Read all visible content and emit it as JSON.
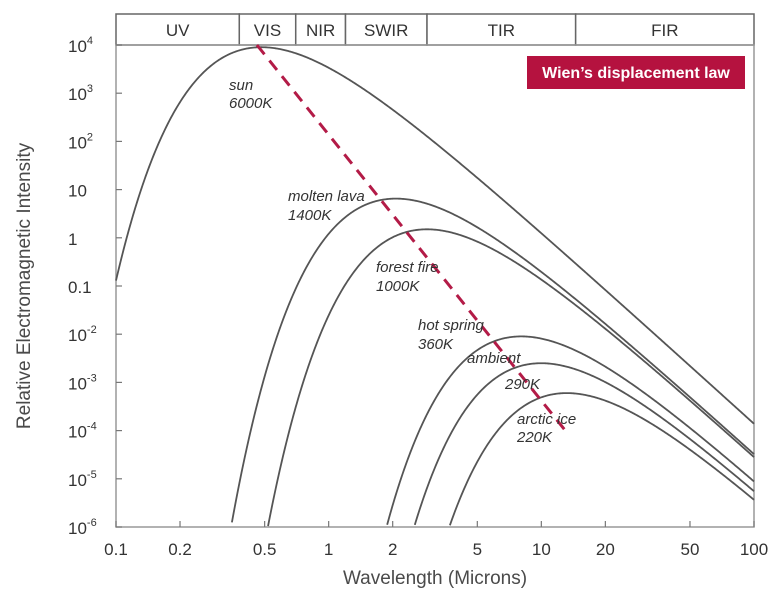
{
  "chart_data": {
    "type": "line",
    "title": "",
    "xlabel": "Wavelength (Microns)",
    "ylabel": "Relative Electromagnetic Intensity",
    "xscale": "log",
    "yscale": "log",
    "xlim": [
      0.1,
      100
    ],
    "ylim": [
      1e-06,
      10000
    ],
    "grid": false,
    "x_ticks": [
      {
        "value": 0.1,
        "label": "0.1"
      },
      {
        "value": 0.2,
        "label": "0.2"
      },
      {
        "value": 0.5,
        "label": "0.5"
      },
      {
        "value": 1,
        "label": "1"
      },
      {
        "value": 2,
        "label": "2"
      },
      {
        "value": 5,
        "label": "5"
      },
      {
        "value": 10,
        "label": "10"
      },
      {
        "value": 20,
        "label": "20"
      },
      {
        "value": 50,
        "label": "50"
      },
      {
        "value": 100,
        "label": "100"
      }
    ],
    "y_ticks": [
      {
        "value": 10000,
        "base": "10",
        "exp": "4"
      },
      {
        "value": 1000,
        "base": "10",
        "exp": "3"
      },
      {
        "value": 100,
        "base": "10",
        "exp": "2"
      },
      {
        "value": 10,
        "base": "10",
        "exp": ""
      },
      {
        "value": 1,
        "base": "1",
        "exp": ""
      },
      {
        "value": 0.1,
        "base": "0.1",
        "exp": ""
      },
      {
        "value": 0.01,
        "base": "10",
        "exp": "-2"
      },
      {
        "value": 0.001,
        "base": "10",
        "exp": "-3"
      },
      {
        "value": 0.0001,
        "base": "10",
        "exp": "-4"
      },
      {
        "value": 1e-05,
        "base": "10",
        "exp": "-5"
      },
      {
        "value": 1e-06,
        "base": "10",
        "exp": "-6"
      }
    ],
    "bands": [
      {
        "label": "UV",
        "from": 0.1,
        "to": 0.38
      },
      {
        "label": "VIS",
        "from": 0.38,
        "to": 0.7
      },
      {
        "label": "NIR",
        "from": 0.7,
        "to": 1.2
      },
      {
        "label": "SWIR",
        "from": 1.2,
        "to": 2.9
      },
      {
        "label": "TIR",
        "from": 2.9,
        "to": 14.5
      },
      {
        "label": "FIR",
        "from": 14.5,
        "to": 100
      }
    ],
    "series": [
      {
        "label_lines": [
          "sun",
          "6000K"
        ],
        "temperature_k": 6000,
        "peak_x": 0.48,
        "peak_y": 9000
      },
      {
        "label_lines": [
          "molten lava",
          "1400K"
        ],
        "temperature_k": 1400,
        "peak_x": 2.1,
        "peak_y": 6.5
      },
      {
        "label_lines": [
          "forest fire",
          "1000K"
        ],
        "temperature_k": 1000,
        "peak_x": 2.9,
        "peak_y": 1.5
      },
      {
        "label_lines": [
          "hot spring",
          "360K"
        ],
        "temperature_k": 360,
        "peak_x": 8.0,
        "peak_y": 0.009
      },
      {
        "label_lines": [
          "ambient",
          "290K"
        ],
        "temperature_k": 290,
        "peak_x": 10.0,
        "peak_y": 0.0025
      },
      {
        "label_lines": [
          "arctic ice",
          "220K"
        ],
        "temperature_k": 220,
        "peak_x": 13.2,
        "peak_y": 0.0006
      }
    ],
    "wien_line": {
      "x": [
        0.46,
        13.5
      ],
      "y": [
        10000,
        8e-05
      ]
    },
    "legend": {
      "text": "Wien’s displacement law",
      "position": "top-right"
    },
    "colors": {
      "curves": "#555555",
      "wien": "#b31b47",
      "legend_bg": "#b5123f",
      "frame": "#999999"
    }
  }
}
